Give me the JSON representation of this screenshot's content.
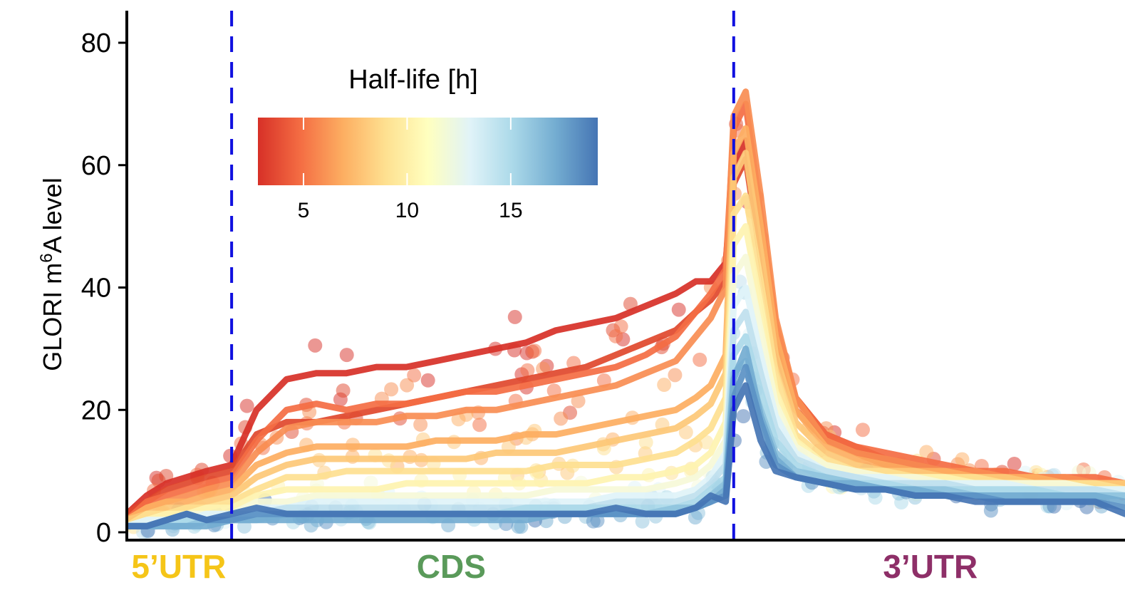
{
  "chart_data": {
    "type": "line",
    "title": "",
    "xlabel": "",
    "ylabel": "GLORI m",
    "ylabel_sup": "6",
    "ylabel_tail": "A level",
    "ylim": [
      0,
      85
    ],
    "yticks": [
      "0",
      "20",
      "40",
      "60",
      "80"
    ],
    "ytick_values": [
      0,
      20,
      40,
      60,
      80
    ],
    "xlim": [
      0,
      100
    ],
    "boundaries": [
      10.5,
      60.8
    ],
    "boundary_color": "#1010e0",
    "regions": [
      {
        "label": "5’UTR",
        "x": 5.2,
        "color": "#f5c518"
      },
      {
        "label": "CDS",
        "x": 32.5,
        "color": "#5a9a5a"
      },
      {
        "label": "3’UTR",
        "x": 80.5,
        "color": "#8e2f68"
      }
    ],
    "legend": {
      "title": "Half-life [h]",
      "range": [
        2.8,
        19.2
      ],
      "ticks": [
        "5",
        "10",
        "15"
      ],
      "tick_values": [
        5,
        10,
        15
      ],
      "colors": [
        "#d73027",
        "#f46d43",
        "#fdae61",
        "#fee090",
        "#ffffbf",
        "#e0f3f8",
        "#abd9e9",
        "#74add1",
        "#4575b4"
      ]
    },
    "series_x": [
      0,
      2,
      4,
      6,
      8,
      10.5,
      13,
      16,
      19,
      22,
      25,
      28,
      31,
      34,
      37,
      40,
      43,
      46,
      49,
      52,
      55,
      57,
      58.5,
      60,
      60.8,
      62,
      63.5,
      65,
      67,
      70,
      73,
      76,
      79,
      82,
      85,
      88,
      91,
      94,
      97,
      100
    ],
    "series": [
      {
        "name": "3.5 h",
        "color": "#d73027",
        "values": [
          3,
          6,
          8,
          9,
          10,
          11,
          20,
          25,
          26,
          26,
          27,
          27,
          28,
          29,
          30,
          31,
          33,
          34,
          35,
          37,
          39,
          41,
          41,
          44,
          60,
          64,
          48,
          32,
          22,
          16,
          14,
          12,
          11,
          10,
          9,
          9,
          8,
          8,
          8,
          7
        ]
      },
      {
        "name": "4.5 h",
        "color": "#e0482d",
        "values": [
          3,
          5,
          7,
          8,
          9,
          10,
          16,
          18,
          18,
          19,
          20,
          21,
          22,
          23,
          24,
          25,
          26,
          27,
          29,
          31,
          33,
          36,
          38,
          41,
          57,
          61,
          45,
          30,
          20,
          15,
          13,
          11,
          10,
          9,
          9,
          8,
          8,
          8,
          7,
          7
        ]
      },
      {
        "name": "5.5 h",
        "color": "#f46d43",
        "values": [
          2,
          5,
          6,
          7,
          8,
          9,
          15,
          20,
          21,
          20,
          21,
          21,
          22,
          23,
          23,
          24,
          25,
          26,
          27,
          29,
          32,
          36,
          39,
          43,
          66,
          70,
          52,
          34,
          22,
          16,
          14,
          13,
          12,
          11,
          10,
          10,
          9,
          9,
          9,
          8
        ]
      },
      {
        "name": "6.5 h",
        "color": "#f88d52",
        "values": [
          2,
          4,
          5,
          6,
          7,
          8,
          13,
          17,
          18,
          18,
          18,
          19,
          19,
          20,
          20,
          21,
          22,
          23,
          24,
          26,
          28,
          32,
          35,
          40,
          68,
          72,
          55,
          35,
          22,
          15,
          13,
          12,
          11,
          10,
          10,
          9,
          9,
          9,
          8,
          8
        ]
      },
      {
        "name": "7.5 h",
        "color": "#fdae61",
        "values": [
          2,
          4,
          5,
          5,
          6,
          7,
          11,
          13,
          14,
          14,
          14,
          14,
          15,
          15,
          15,
          16,
          16,
          17,
          18,
          19,
          20,
          22,
          24,
          29,
          62,
          66,
          50,
          32,
          20,
          14,
          12,
          11,
          10,
          10,
          9,
          9,
          9,
          8,
          8,
          8
        ]
      },
      {
        "name": "8.5 h",
        "color": "#fdc877",
        "values": [
          2,
          3,
          4,
          4,
          5,
          6,
          9,
          11,
          12,
          12,
          12,
          12,
          12,
          12,
          13,
          13,
          13,
          14,
          15,
          16,
          17,
          19,
          21,
          26,
          58,
          62,
          46,
          29,
          18,
          13,
          11,
          10,
          10,
          9,
          9,
          9,
          8,
          8,
          8,
          8
        ]
      },
      {
        "name": "9.5 h",
        "color": "#fee090",
        "values": [
          1,
          3,
          3,
          4,
          4,
          5,
          7,
          9,
          9,
          10,
          10,
          10,
          10,
          10,
          10,
          10,
          11,
          11,
          11,
          12,
          13,
          15,
          17,
          22,
          52,
          55,
          41,
          26,
          16,
          12,
          10,
          10,
          9,
          9,
          9,
          8,
          8,
          8,
          8,
          7
        ]
      },
      {
        "name": "10.5 h",
        "color": "#fef3b0",
        "values": [
          1,
          2,
          3,
          3,
          4,
          4,
          6,
          7,
          7,
          7,
          7,
          8,
          8,
          8,
          8,
          8,
          8,
          8,
          9,
          9,
          10,
          11,
          13,
          18,
          47,
          50,
          37,
          23,
          15,
          11,
          10,
          9,
          9,
          9,
          8,
          8,
          8,
          8,
          7,
          7
        ]
      },
      {
        "name": "11.5 h",
        "color": "#f6f9d8",
        "values": [
          1,
          2,
          2,
          3,
          3,
          3,
          5,
          5,
          6,
          6,
          6,
          6,
          6,
          6,
          6,
          6,
          7,
          7,
          7,
          7,
          8,
          9,
          11,
          15,
          42,
          45,
          33,
          21,
          14,
          11,
          10,
          9,
          9,
          8,
          8,
          8,
          8,
          8,
          7,
          7
        ]
      },
      {
        "name": "12.5 h",
        "color": "#e0f3f8",
        "values": [
          1,
          2,
          2,
          2,
          3,
          3,
          4,
          4,
          5,
          5,
          5,
          5,
          5,
          5,
          5,
          5,
          5,
          5,
          6,
          6,
          6,
          7,
          9,
          13,
          37,
          40,
          29,
          19,
          13,
          10,
          9,
          9,
          8,
          8,
          8,
          8,
          7,
          7,
          7,
          7
        ]
      },
      {
        "name": "13.5 h",
        "color": "#bfe0ee",
        "values": [
          1,
          1,
          2,
          2,
          2,
          3,
          3,
          4,
          4,
          4,
          4,
          4,
          4,
          4,
          4,
          4,
          4,
          4,
          5,
          5,
          5,
          6,
          8,
          11,
          33,
          36,
          26,
          17,
          12,
          10,
          9,
          8,
          8,
          8,
          7,
          7,
          7,
          7,
          7,
          6
        ]
      },
      {
        "name": "14.5 h",
        "color": "#abd9e9",
        "values": [
          1,
          1,
          1,
          2,
          2,
          2,
          3,
          3,
          3,
          3,
          3,
          3,
          3,
          3,
          3,
          4,
          4,
          4,
          4,
          4,
          4,
          5,
          7,
          9,
          29,
          32,
          23,
          15,
          11,
          9,
          8,
          8,
          7,
          7,
          7,
          7,
          7,
          6,
          6,
          6
        ]
      },
      {
        "name": "15.5 h",
        "color": "#8fc3dd",
        "values": [
          1,
          1,
          1,
          1,
          2,
          2,
          2,
          3,
          3,
          3,
          3,
          3,
          3,
          3,
          3,
          3,
          3,
          3,
          3,
          3,
          4,
          4,
          6,
          8,
          26,
          28,
          20,
          13,
          10,
          9,
          8,
          7,
          7,
          7,
          6,
          6,
          6,
          6,
          6,
          6
        ]
      },
      {
        "name": "16.5 h",
        "color": "#74add1",
        "values": [
          1,
          1,
          1,
          1,
          1,
          2,
          2,
          2,
          2,
          2,
          2,
          2,
          2,
          2,
          2,
          2,
          3,
          3,
          3,
          3,
          3,
          4,
          5,
          7,
          25,
          30,
          19,
          12,
          9,
          8,
          8,
          7,
          7,
          6,
          6,
          6,
          6,
          6,
          6,
          5
        ]
      },
      {
        "name": "17.5 h",
        "color": "#5b91c4",
        "values": [
          1,
          1,
          2,
          3,
          2,
          2,
          3,
          3,
          3,
          3,
          3,
          3,
          3,
          3,
          3,
          3,
          3,
          3,
          3,
          3,
          3,
          4,
          5,
          6,
          22,
          27,
          18,
          11,
          9,
          8,
          7,
          7,
          6,
          6,
          6,
          5,
          5,
          5,
          5,
          4
        ]
      },
      {
        "name": "18.5 h",
        "color": "#4575b4",
        "values": [
          1,
          1,
          2,
          3,
          2,
          3,
          4,
          3,
          3,
          3,
          3,
          3,
          3,
          3,
          3,
          3,
          3,
          3,
          4,
          3,
          3,
          4,
          6,
          5,
          20,
          24,
          15,
          10,
          9,
          8,
          7,
          7,
          6,
          6,
          5,
          5,
          5,
          5,
          5,
          3
        ]
      }
    ]
  }
}
